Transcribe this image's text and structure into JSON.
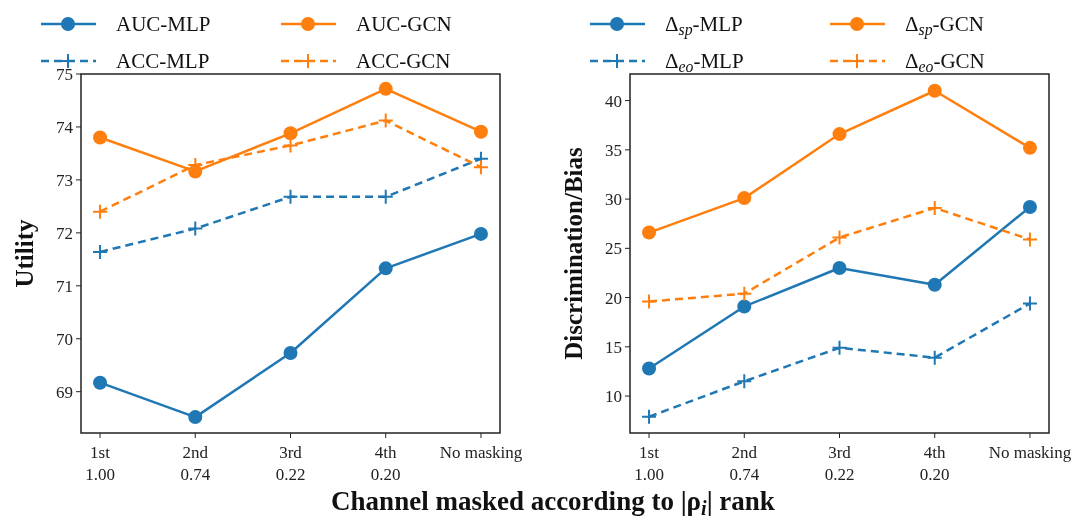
{
  "chart_data": [
    {
      "type": "line",
      "ylabel": "Utility",
      "xlabel": "Channel masked according to |ρ$_{i}$| rank",
      "categories": [
        "1st\n1.00",
        "2nd\n0.74",
        "3rd\n0.22",
        "4th\n0.20",
        "No masking"
      ],
      "ylim": [
        68.22,
        75
      ],
      "yticks": [
        69,
        70,
        71,
        72,
        73,
        74,
        75
      ],
      "grid": false,
      "legend": "top",
      "series": [
        {
          "name": "AUC-MLP",
          "color": "#1f77b4",
          "marker": "circle",
          "line_style": "solid",
          "values": [
            69.17,
            68.52,
            69.73,
            71.33,
            71.98
          ]
        },
        {
          "name": "AUC-GCN",
          "color": "#ff7f0e",
          "marker": "circle",
          "line_style": "solid",
          "values": [
            73.8,
            73.16,
            73.88,
            74.72,
            73.91
          ]
        },
        {
          "name": "ACC-MLP",
          "color": "#1f77b4",
          "marker": "cross",
          "line_style": "dashed",
          "values": [
            71.64,
            72.08,
            72.68,
            72.68,
            73.4
          ]
        },
        {
          "name": "ACC-GCN",
          "color": "#ff7f0e",
          "marker": "cross",
          "line_style": "dashed",
          "values": [
            72.4,
            73.28,
            73.65,
            74.12,
            73.24
          ]
        }
      ]
    },
    {
      "type": "line",
      "ylabel": "Discrimination/Bias",
      "categories": [
        "1st\n1.00",
        "2nd\n0.74",
        "3rd\n0.22",
        "4th\n0.20",
        "No masking"
      ],
      "ylim": [
        6.25,
        42.7
      ],
      "yticks": [
        10,
        15,
        20,
        25,
        30,
        35,
        40
      ],
      "grid": false,
      "legend": "top",
      "series": [
        {
          "name": "Δ$_{sp}$-MLP",
          "color": "#1f77b4",
          "marker": "circle",
          "line_style": "solid",
          "values": [
            12.8,
            19.1,
            23.0,
            21.3,
            29.2
          ]
        },
        {
          "name": "Δ$_{sp}$-GCN",
          "color": "#ff7f0e",
          "marker": "circle",
          "line_style": "solid",
          "values": [
            26.6,
            30.1,
            36.6,
            41.0,
            35.2
          ]
        },
        {
          "name": "Δ$_{eo}$-MLP",
          "color": "#1f77b4",
          "marker": "cross",
          "line_style": "dashed",
          "values": [
            7.9,
            11.5,
            14.9,
            13.9,
            19.4
          ]
        },
        {
          "name": "Δ$_{eo}$-GCN",
          "color": "#ff7f0e",
          "marker": "cross",
          "line_style": "dashed",
          "values": [
            19.6,
            20.4,
            26.1,
            29.1,
            25.9
          ]
        }
      ]
    }
  ]
}
